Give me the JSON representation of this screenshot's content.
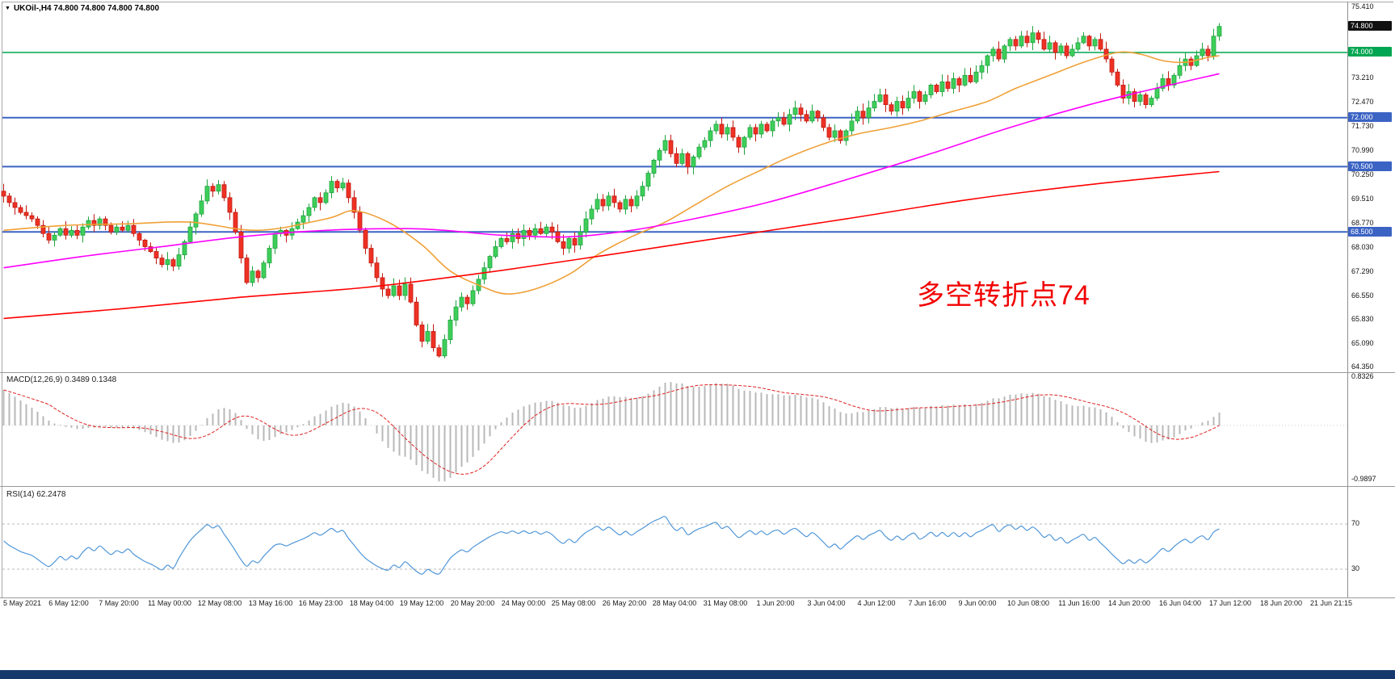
{
  "header": {
    "collapse_icon": "▼",
    "symbol_info": "UKOil-,H4 74.800 74.800 74.800 74.800"
  },
  "main_chart": {
    "price_ticks": [
      {
        "label": "75.410",
        "value": 75.41
      },
      {
        "label": "73.210",
        "value": 73.21
      },
      {
        "label": "72.470",
        "value": 72.47
      },
      {
        "label": "71.730",
        "value": 71.73
      },
      {
        "label": "70.990",
        "value": 70.99
      },
      {
        "label": "70.250",
        "value": 70.25
      },
      {
        "label": "69.510",
        "value": 69.51
      },
      {
        "label": "68.770",
        "value": 68.77
      },
      {
        "label": "68.030",
        "value": 68.03
      },
      {
        "label": "67.290",
        "value": 67.29
      },
      {
        "label": "66.550",
        "value": 66.55
      },
      {
        "label": "65.830",
        "value": 65.83
      },
      {
        "label": "65.090",
        "value": 65.09
      },
      {
        "label": "64.350",
        "value": 64.35
      }
    ],
    "price_badges": [
      {
        "label": "74.800",
        "value": 74.8,
        "bg": "#111111"
      },
      {
        "label": "74.000",
        "value": 74.0,
        "bg": "#00a651"
      },
      {
        "label": "72.000",
        "value": 72.0,
        "bg": "#3b63c4"
      },
      {
        "label": "70.500",
        "value": 70.5,
        "bg": "#3b63c4"
      },
      {
        "label": "68.500",
        "value": 68.5,
        "bg": "#3b63c4"
      }
    ],
    "annotation": {
      "text": "多空转折点74",
      "color": "#f20000"
    }
  },
  "macd_panel": {
    "label": "MACD(12,26,9) 0.3489 0.1348",
    "axis_max": "0.8326",
    "axis_min": "-0.9897"
  },
  "rsi_panel": {
    "label": "RSI(14) 62.2478",
    "level_labels": [
      "70",
      "30"
    ]
  },
  "time_axis": {
    "labels": [
      "5 May 2021",
      "6 May 12:00",
      "7 May 20:00",
      "11 May 00:00",
      "12 May 08:00",
      "13 May 16:00",
      "16 May 23:00",
      "18 May 04:00",
      "19 May 12:00",
      "20 May 20:00",
      "24 May 00:00",
      "25 May 08:00",
      "26 May 20:00",
      "28 May 04:00",
      "31 May 08:00",
      "1 Jun 20:00",
      "3 Jun 04:00",
      "4 Jun 12:00",
      "7 Jun 16:00",
      "9 Jun 00:00",
      "10 Jun 08:00",
      "11 Jun 16:00",
      "14 Jun 20:00",
      "16 Jun 04:00",
      "17 Jun 12:00",
      "18 Jun 20:00",
      "21 Jun 21:15"
    ]
  },
  "chart_data": {
    "type": "candlestick",
    "symbol": "UKOil-",
    "timeframe": "H4",
    "title": "UKOil-,H4",
    "y_range": [
      64.35,
      75.41
    ],
    "first_open": 69.75,
    "note": "close series estimated from chart; open of each bar = previous close",
    "closes": [
      69.6,
      69.4,
      69.25,
      69.1,
      69.0,
      68.9,
      68.7,
      68.45,
      68.25,
      68.4,
      68.6,
      68.4,
      68.55,
      68.4,
      68.65,
      68.85,
      68.7,
      68.9,
      68.7,
      68.5,
      68.65,
      68.55,
      68.7,
      68.45,
      68.25,
      68.05,
      67.9,
      67.7,
      67.5,
      67.65,
      67.45,
      67.8,
      68.2,
      68.65,
      69.05,
      69.45,
      69.9,
      69.75,
      69.95,
      69.55,
      69.1,
      68.5,
      67.7,
      66.95,
      67.3,
      67.1,
      67.55,
      68.0,
      68.45,
      68.55,
      68.4,
      68.6,
      68.8,
      69.0,
      69.25,
      69.55,
      69.4,
      69.7,
      70.05,
      69.85,
      70.0,
      69.55,
      69.1,
      68.55,
      68.0,
      67.55,
      67.1,
      66.75,
      66.55,
      66.85,
      66.55,
      66.9,
      66.35,
      65.65,
      65.15,
      65.45,
      64.95,
      64.7,
      65.2,
      65.8,
      66.2,
      66.5,
      66.3,
      66.7,
      67.05,
      67.4,
      67.75,
      68.05,
      68.3,
      68.2,
      68.45,
      68.3,
      68.55,
      68.4,
      68.6,
      68.45,
      68.65,
      68.5,
      68.2,
      68.0,
      68.3,
      68.1,
      68.5,
      68.9,
      69.2,
      69.5,
      69.3,
      69.6,
      69.4,
      69.2,
      69.5,
      69.3,
      69.6,
      69.9,
      70.3,
      70.7,
      71.0,
      71.3,
      70.9,
      70.6,
      70.9,
      70.5,
      70.8,
      71.1,
      71.3,
      71.6,
      71.8,
      71.5,
      71.7,
      71.4,
      71.1,
      71.4,
      71.7,
      71.5,
      71.8,
      71.6,
      71.9,
      72.0,
      71.8,
      72.1,
      72.3,
      72.1,
      71.9,
      72.2,
      72.0,
      71.7,
      71.4,
      71.6,
      71.3,
      71.6,
      71.9,
      72.2,
      72.0,
      72.3,
      72.5,
      72.7,
      72.4,
      72.2,
      72.5,
      72.3,
      72.6,
      72.8,
      72.5,
      72.7,
      73.0,
      72.8,
      73.1,
      72.9,
      73.2,
      73.0,
      73.3,
      73.1,
      73.4,
      73.6,
      73.9,
      74.1,
      73.8,
      74.2,
      74.4,
      74.2,
      74.5,
      74.3,
      74.6,
      74.4,
      74.1,
      74.3,
      74.0,
      74.2,
      73.9,
      74.1,
      74.3,
      74.5,
      74.2,
      74.4,
      74.1,
      73.8,
      73.4,
      73.0,
      72.6,
      72.8,
      72.5,
      72.7,
      72.4,
      72.6,
      72.9,
      73.2,
      73.0,
      73.3,
      73.6,
      73.8,
      73.6,
      73.9,
      74.1,
      73.9,
      74.5,
      74.8
    ],
    "candle_colors": {
      "bull": {
        "fill": "#3ecf5a",
        "stroke": "#1fa23e"
      },
      "bear": {
        "fill": "#ee3124",
        "stroke": "#c01910"
      }
    },
    "hlines": [
      {
        "price": 74.0,
        "color": "#00a651",
        "width": 1.4
      },
      {
        "price": 72.0,
        "color": "#3b63c4",
        "width": 2
      },
      {
        "price": 70.5,
        "color": "#3b63c4",
        "width": 2
      },
      {
        "price": 68.5,
        "color": "#3b63c4",
        "width": 2
      }
    ],
    "moving_averages": [
      {
        "name": "ema-fast",
        "color": "#efa036",
        "points": [
          [
            0,
            68.55
          ],
          [
            11,
            68.7
          ],
          [
            22,
            68.75
          ],
          [
            33,
            68.8
          ],
          [
            45,
            68.55
          ],
          [
            57,
            68.9
          ],
          [
            62,
            69.15
          ],
          [
            68,
            68.8
          ],
          [
            74,
            68.1
          ],
          [
            79,
            67.3
          ],
          [
            85,
            66.8
          ],
          [
            89,
            66.6
          ],
          [
            94,
            66.75
          ],
          [
            100,
            67.2
          ],
          [
            105,
            67.8
          ],
          [
            111,
            68.35
          ],
          [
            117,
            68.8
          ],
          [
            122,
            69.3
          ],
          [
            128,
            69.9
          ],
          [
            134,
            70.4
          ],
          [
            139,
            70.8
          ],
          [
            145,
            71.2
          ],
          [
            151,
            71.5
          ],
          [
            157,
            71.7
          ],
          [
            162,
            71.9
          ],
          [
            168,
            72.2
          ],
          [
            174,
            72.5
          ],
          [
            179,
            72.9
          ],
          [
            185,
            73.3
          ],
          [
            191,
            73.7
          ],
          [
            197,
            74.0
          ],
          [
            201,
            73.95
          ],
          [
            205,
            73.75
          ],
          [
            209,
            73.7
          ],
          [
            213,
            73.85
          ],
          [
            215,
            73.9
          ]
        ]
      },
      {
        "name": "ema-mid",
        "color": "#ff00ff",
        "points": [
          [
            0,
            67.4
          ],
          [
            14,
            67.75
          ],
          [
            28,
            68.05
          ],
          [
            42,
            68.35
          ],
          [
            57,
            68.55
          ],
          [
            71,
            68.6
          ],
          [
            78,
            68.55
          ],
          [
            88,
            68.4
          ],
          [
            100,
            68.35
          ],
          [
            111,
            68.55
          ],
          [
            122,
            68.9
          ],
          [
            135,
            69.4
          ],
          [
            149,
            70.1
          ],
          [
            164,
            70.9
          ],
          [
            178,
            71.7
          ],
          [
            192,
            72.4
          ],
          [
            205,
            72.95
          ],
          [
            215,
            73.35
          ]
        ]
      },
      {
        "name": "ema-slow",
        "color": "#ff0000",
        "points": [
          [
            0,
            65.85
          ],
          [
            21,
            66.15
          ],
          [
            42,
            66.5
          ],
          [
            64,
            66.8
          ],
          [
            85,
            67.25
          ],
          [
            107,
            67.8
          ],
          [
            128,
            68.35
          ],
          [
            149,
            68.9
          ],
          [
            171,
            69.5
          ],
          [
            192,
            69.95
          ],
          [
            215,
            70.35
          ]
        ]
      }
    ],
    "macd": {
      "fast": 12,
      "slow": 26,
      "signal_period": 9,
      "current_values": [
        0.3489,
        0.1348
      ],
      "range": [
        -0.9897,
        0.8326
      ],
      "histogram_color": "#b8b8b8",
      "signal_color": "#e02020"
    },
    "rsi": {
      "period": 14,
      "current_value": 62.2478,
      "levels": [
        70,
        30
      ],
      "line_color": "#4f96d8"
    }
  }
}
